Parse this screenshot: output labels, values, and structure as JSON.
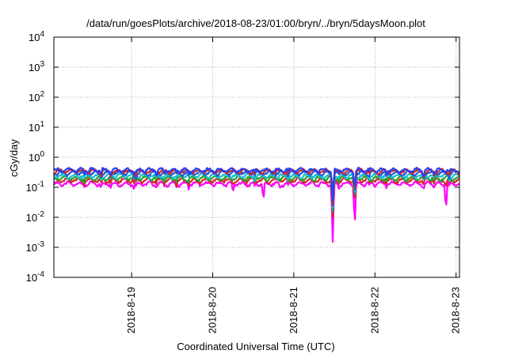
{
  "chart_data": {
    "type": "line",
    "title": "/data/run/goesPlots/archive/2018-08-23/01:00/bryn/../bryn/5daysMoon.plot",
    "xlabel": "Coordinated Universal Time (UTC)",
    "ylabel": "cGy/day",
    "yscale": "log",
    "ylim": [
      0.0001,
      10000
    ],
    "y_ticks": [
      {
        "exp": "-4",
        "value": 0.0001
      },
      {
        "exp": "-3",
        "value": 0.001
      },
      {
        "exp": "-2",
        "value": 0.01
      },
      {
        "exp": "-1",
        "value": 0.1
      },
      {
        "exp": "0",
        "value": 1
      },
      {
        "exp": "1",
        "value": 10
      },
      {
        "exp": "2",
        "value": 100
      },
      {
        "exp": "3",
        "value": 1000
      },
      {
        "exp": "4",
        "value": 10000
      }
    ],
    "y_tick_base": "10",
    "xlim": [
      "2018-08-18T01:00",
      "2018-08-23T01:00"
    ],
    "x_ticks": [
      "2018-8-19",
      "2018-8-20",
      "2018-8-21",
      "2018-8-22",
      "2018-8-23"
    ],
    "grid": true,
    "legend": "none",
    "series": [
      {
        "color": "#ff00ff",
        "base": 0.13,
        "dips": [
          [
            "2018-08-20T06:00",
            0.07
          ],
          [
            "2018-08-20T15:00",
            0.035
          ],
          [
            "2018-08-20T20:00",
            0.09
          ],
          [
            "2018-08-21T11:30",
            0.0015
          ],
          [
            "2018-08-21T18:00",
            0.004
          ],
          [
            "2018-08-22T21:00",
            0.017
          ]
        ]
      },
      {
        "color": "#d62728",
        "base": 0.17,
        "dips": [
          [
            "2018-08-20T06:00",
            0.12
          ],
          [
            "2018-08-21T11:30",
            0.01
          ],
          [
            "2018-08-21T18:00",
            0.03
          ],
          [
            "2018-08-22T21:00",
            0.1
          ]
        ]
      },
      {
        "color": "#2ca02c",
        "base": 0.2,
        "dips": [
          [
            "2018-08-21T11:30",
            0.015
          ],
          [
            "2018-08-21T18:00",
            0.04
          ]
        ]
      },
      {
        "color": "#17becf",
        "base": 0.24,
        "dips": [
          [
            "2018-08-21T11:30",
            0.02
          ],
          [
            "2018-08-21T18:00",
            0.05
          ]
        ]
      },
      {
        "color": "#1f5fd6",
        "base": 0.3,
        "dips": [
          [
            "2018-08-21T11:30",
            0.025
          ],
          [
            "2018-08-21T18:00",
            0.06
          ]
        ]
      },
      {
        "color": "#d62728",
        "base": 0.34,
        "dips": [
          [
            "2018-08-21T11:30",
            0.03
          ],
          [
            "2018-08-21T18:00",
            0.07
          ]
        ]
      },
      {
        "color": "#2b3ff0",
        "base": 0.37,
        "dips": [
          [
            "2018-08-21T11:30",
            0.035
          ],
          [
            "2018-08-21T18:00",
            0.08
          ]
        ]
      }
    ]
  }
}
